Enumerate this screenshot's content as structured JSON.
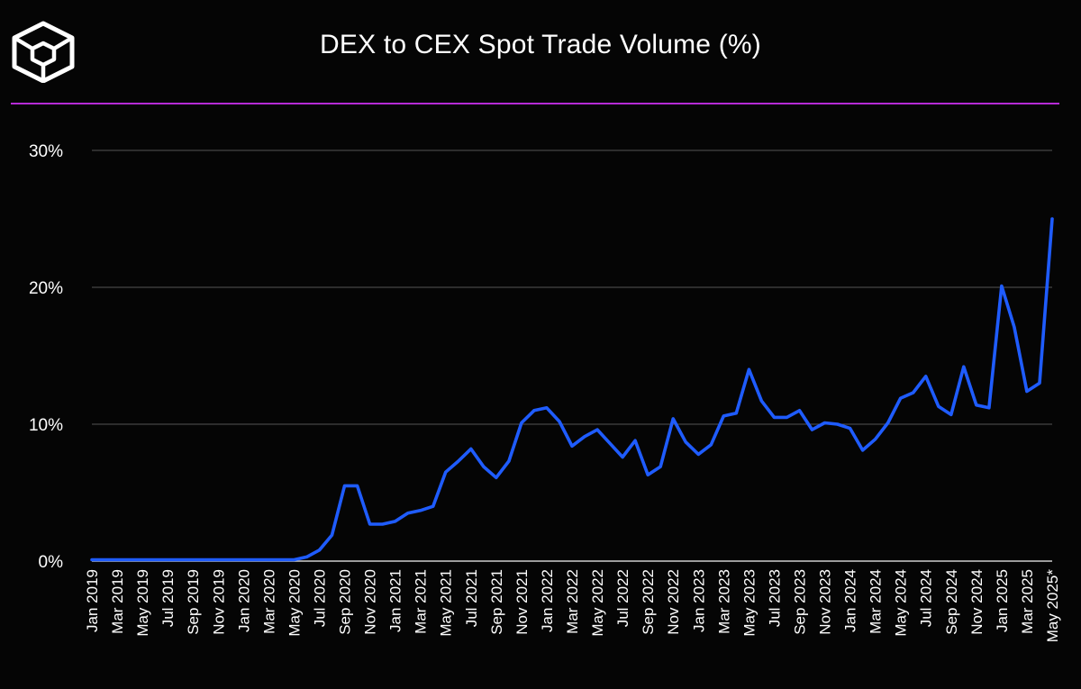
{
  "title": "DEX to CEX Spot Trade Volume (%)",
  "colors": {
    "background": "#050505",
    "accent_rule": "#b52ad6",
    "line": "#1f5cff",
    "grid": "#555555",
    "text": "#ffffff"
  },
  "logo": {
    "icon": "cube-logo-icon"
  },
  "chart_data": {
    "type": "line",
    "title": "DEX to CEX Spot Trade Volume (%)",
    "xlabel": "",
    "ylabel": "",
    "ylim": [
      0,
      30
    ],
    "yticks": [
      {
        "value": 0,
        "label": "0%"
      },
      {
        "value": 10,
        "label": "10%"
      },
      {
        "value": 20,
        "label": "20%"
      },
      {
        "value": 30,
        "label": "30%"
      }
    ],
    "grid": true,
    "legend": "none",
    "categories": [
      "Jan 2019",
      "Feb 2019",
      "Mar 2019",
      "Apr 2019",
      "May 2019",
      "Jun 2019",
      "Jul 2019",
      "Aug 2019",
      "Sep 2019",
      "Oct 2019",
      "Nov 2019",
      "Dec 2019",
      "Jan 2020",
      "Feb 2020",
      "Mar 2020",
      "Apr 2020",
      "May 2020",
      "Jun 2020",
      "Jul 2020",
      "Aug 2020",
      "Sep 2020",
      "Oct 2020",
      "Nov 2020",
      "Dec 2020",
      "Jan 2021",
      "Feb 2021",
      "Mar 2021",
      "Apr 2021",
      "May 2021",
      "Jun 2021",
      "Jul 2021",
      "Aug 2021",
      "Sep 2021",
      "Oct 2021",
      "Nov 2021",
      "Dec 2021",
      "Jan 2022",
      "Feb 2022",
      "Mar 2022",
      "Apr 2022",
      "May 2022",
      "Jun 2022",
      "Jul 2022",
      "Aug 2022",
      "Sep 2022",
      "Oct 2022",
      "Nov 2022",
      "Dec 2022",
      "Jan 2023",
      "Feb 2023",
      "Mar 2023",
      "Apr 2023",
      "May 2023",
      "Jun 2023",
      "Jul 2023",
      "Aug 2023",
      "Sep 2023",
      "Oct 2023",
      "Nov 2023",
      "Dec 2023",
      "Jan 2024",
      "Feb 2024",
      "Mar 2024",
      "Apr 2024",
      "May 2024",
      "Jun 2024",
      "Jul 2024",
      "Aug 2024",
      "Sep 2024",
      "Oct 2024",
      "Nov 2024",
      "Dec 2024",
      "Jan 2025",
      "Feb 2025",
      "Mar 2025",
      "Apr 2025",
      "May 2025*"
    ],
    "tick_labels": [
      "Jan 2019",
      "Mar 2019",
      "May 2019",
      "Jul 2019",
      "Sep 2019",
      "Nov 2019",
      "Jan 2020",
      "Mar 2020",
      "May 2020",
      "Jul 2020",
      "Sep 2020",
      "Nov 2020",
      "Jan 2021",
      "Mar 2021",
      "May 2021",
      "Jul 2021",
      "Sep 2021",
      "Nov 2021",
      "Jan 2022",
      "Mar 2022",
      "May 2022",
      "Jul 2022",
      "Sep 2022",
      "Nov 2022",
      "Jan 2023",
      "Mar 2023",
      "May 2023",
      "Jul 2023",
      "Sep 2023",
      "Nov 2023",
      "Jan 2024",
      "Mar 2024",
      "May 2024",
      "Jul 2024",
      "Sep 2024",
      "Nov 2024",
      "Jan 2025",
      "Mar 2025",
      "May 2025*"
    ],
    "series": [
      {
        "values": [
          0.1,
          0.1,
          0.1,
          0.1,
          0.1,
          0.1,
          0.1,
          0.1,
          0.1,
          0.1,
          0.1,
          0.1,
          0.1,
          0.1,
          0.1,
          0.1,
          0.1,
          0.3,
          0.8,
          1.9,
          5.5,
          5.5,
          2.7,
          2.7,
          2.9,
          3.5,
          3.7,
          4.0,
          6.5,
          7.3,
          8.2,
          6.9,
          6.1,
          7.3,
          10.1,
          11.0,
          11.2,
          10.2,
          8.4,
          9.1,
          9.6,
          8.6,
          7.6,
          8.8,
          6.3,
          6.9,
          10.4,
          8.7,
          7.8,
          8.5,
          10.6,
          10.8,
          14.0,
          11.7,
          10.5,
          10.5,
          11.0,
          9.6,
          10.1,
          10.0,
          9.7,
          8.1,
          8.9,
          10.1,
          11.9,
          12.3,
          13.5,
          11.3,
          10.7,
          14.2,
          11.4,
          11.2,
          20.1,
          17.1,
          12.4,
          13.0,
          25.0
        ]
      }
    ]
  }
}
